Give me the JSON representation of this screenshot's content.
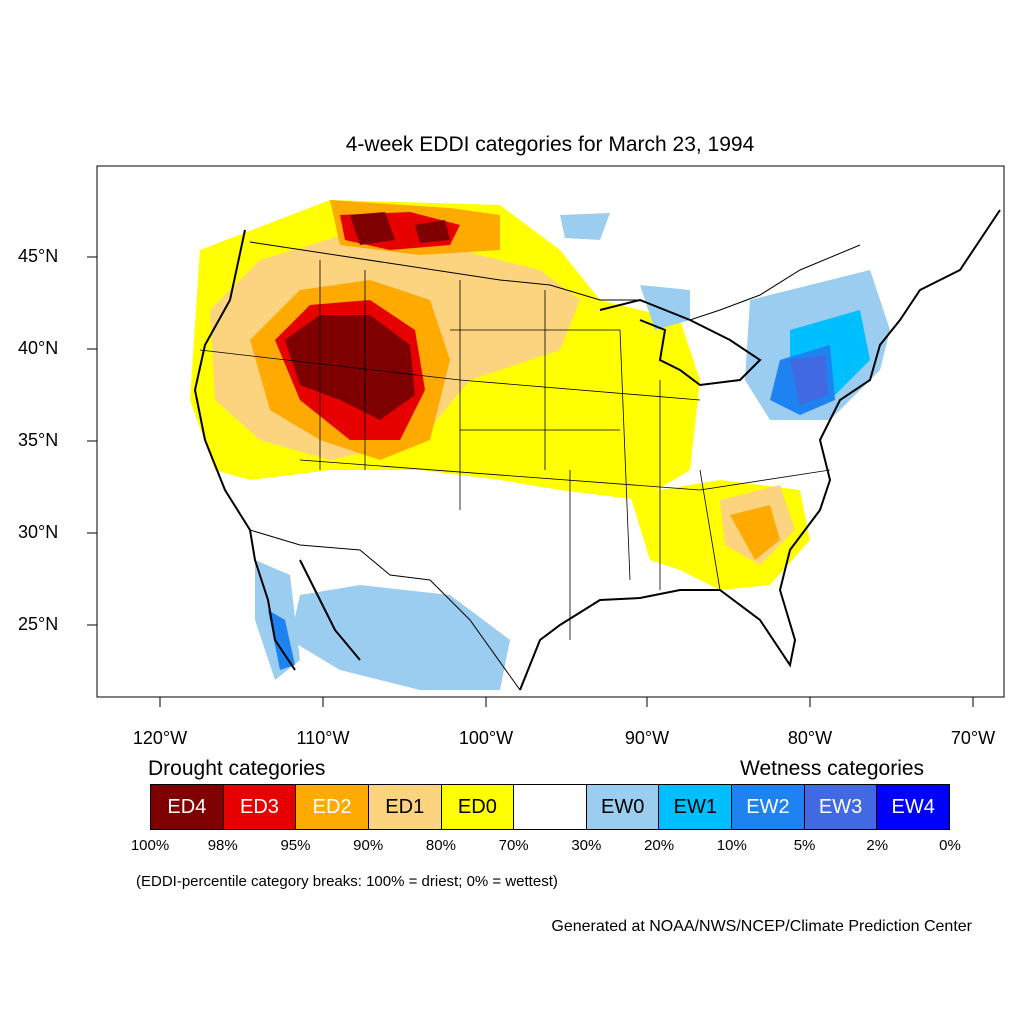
{
  "title": "4-week EDDI categories for March 23, 1994",
  "lat_labels": [
    "45°N",
    "40°N",
    "35°N",
    "30°N",
    "25°N"
  ],
  "lon_labels": [
    "120°W",
    "110°W",
    "100°W",
    "90°W",
    "80°W",
    "70°W"
  ],
  "legend": {
    "drought_heading": "Drought categories",
    "wetness_heading": "Wetness categories",
    "categories": [
      {
        "label": "ED4",
        "color": "#7f0000"
      },
      {
        "label": "ED3",
        "color": "#e60000"
      },
      {
        "label": "ED2",
        "color": "#ffaa00"
      },
      {
        "label": "ED1",
        "color": "#fcd37f"
      },
      {
        "label": "ED0",
        "color": "#ffff00"
      },
      {
        "label": "",
        "color": "#ffffff"
      },
      {
        "label": "EW0",
        "color": "#9bcdf0"
      },
      {
        "label": "EW1",
        "color": "#00bfff"
      },
      {
        "label": "EW2",
        "color": "#1e82f0"
      },
      {
        "label": "EW3",
        "color": "#4169e1"
      },
      {
        "label": "EW4",
        "color": "#0000ff"
      }
    ],
    "percent_breaks": [
      "100%",
      "98%",
      "95%",
      "90%",
      "80%",
      "70%",
      "30%",
      "20%",
      "10%",
      "5%",
      "2%",
      "0%"
    ]
  },
  "note": "(EDDI-percentile category breaks: 100% = driest; 0% = wettest)",
  "credit": "Generated at NOAA/NWS/NCEP/Climate Prediction Center"
}
